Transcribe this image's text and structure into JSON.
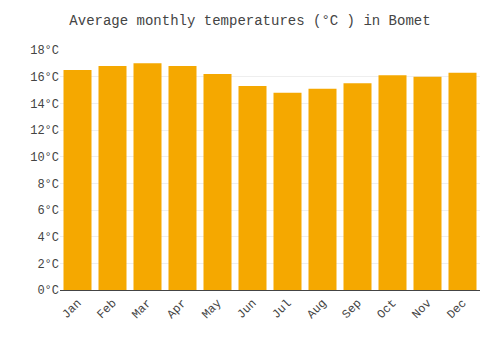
{
  "chart_data": {
    "type": "bar",
    "title": "Average monthly temperatures (°C ) in Bomet",
    "categories": [
      "Jan",
      "Feb",
      "Mar",
      "Apr",
      "May",
      "Jun",
      "Jul",
      "Aug",
      "Sep",
      "Oct",
      "Nov",
      "Dec"
    ],
    "values": [
      16.5,
      16.8,
      17.0,
      16.8,
      16.2,
      15.3,
      14.8,
      15.1,
      15.5,
      16.1,
      16.0,
      16.3
    ],
    "color": "#F5A800",
    "ylim": [
      0,
      18
    ],
    "yticks": [
      {
        "value": 0,
        "label": "0°C"
      },
      {
        "value": 2,
        "label": "2°C"
      },
      {
        "value": 4,
        "label": "4°C"
      },
      {
        "value": 6,
        "label": "6°C"
      },
      {
        "value": 8,
        "label": "8°C"
      },
      {
        "value": 10,
        "label": "10°C"
      },
      {
        "value": 12,
        "label": "12°C"
      },
      {
        "value": 14,
        "label": "14°C"
      },
      {
        "value": 16,
        "label": "16°C"
      },
      {
        "value": 18,
        "label": "18°C"
      }
    ],
    "grid": true
  }
}
